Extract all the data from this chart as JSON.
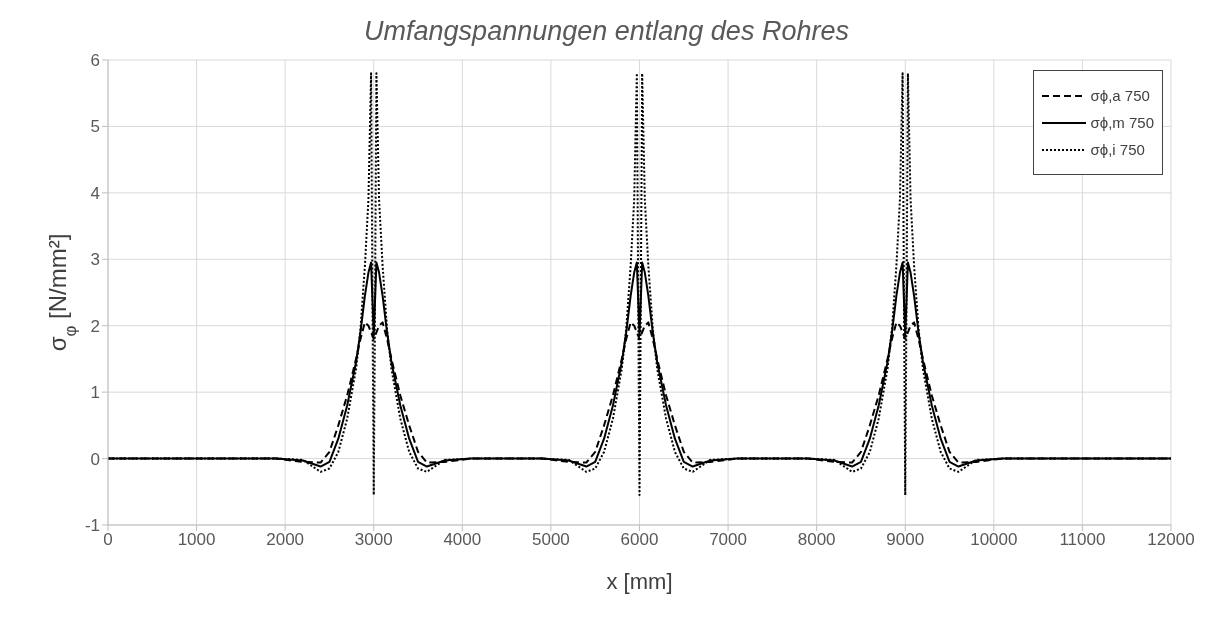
{
  "chart_data": {
    "type": "line",
    "title": "Umfangspannungen entlang des Rohres",
    "xlabel": "x [mm]",
    "ylabel": "σ$_{φ}$ [N/mm²]",
    "xlim": [
      0,
      12000
    ],
    "xticks": [
      0,
      1000,
      2000,
      3000,
      4000,
      5000,
      6000,
      7000,
      8000,
      9000,
      10000,
      11000,
      12000
    ],
    "ylim": [
      -1,
      6
    ],
    "yticks": [
      -1,
      0,
      1,
      2,
      3,
      4,
      5,
      6
    ],
    "grid": true,
    "legend": "top right",
    "marker": "none",
    "x": [
      0,
      1900,
      2200,
      2400,
      2500,
      2600,
      2700,
      2800,
      2850,
      2900,
      2940,
      2970,
      2985,
      3000,
      3015,
      3030,
      3060,
      3100,
      3150,
      3200,
      3300,
      3400,
      3500,
      3600,
      3800,
      4100,
      4900,
      5200,
      5400,
      5500,
      5600,
      5700,
      5800,
      5850,
      5900,
      5940,
      5970,
      5985,
      6000,
      6015,
      6030,
      6060,
      6100,
      6150,
      6200,
      6300,
      6400,
      6500,
      6600,
      6800,
      7100,
      7900,
      8200,
      8400,
      8500,
      8600,
      8700,
      8800,
      8850,
      8900,
      8940,
      8970,
      8985,
      9000,
      9015,
      9030,
      9060,
      9100,
      9150,
      9200,
      9300,
      9400,
      9500,
      9600,
      9800,
      10100,
      12000
    ],
    "series": [
      {
        "name": "σϕ,a 750",
        "color": "#000000",
        "line_style": "dashed",
        "values": [
          0,
          0,
          -0.05,
          -0.06,
          0.1,
          0.5,
          0.95,
          1.5,
          1.8,
          2.05,
          2.0,
          1.9,
          1.85,
          1.8,
          1.85,
          1.9,
          2.0,
          2.05,
          1.8,
          1.5,
          0.95,
          0.5,
          0.1,
          -0.06,
          -0.05,
          0,
          0,
          -0.05,
          -0.06,
          0.1,
          0.5,
          0.95,
          1.5,
          1.8,
          2.05,
          2.0,
          1.9,
          1.85,
          1.8,
          1.85,
          1.9,
          2.0,
          2.05,
          1.8,
          1.5,
          0.95,
          0.5,
          0.1,
          -0.06,
          -0.05,
          0,
          0,
          -0.05,
          -0.06,
          0.1,
          0.5,
          0.95,
          1.5,
          1.8,
          2.05,
          2.0,
          1.9,
          1.85,
          1.8,
          1.85,
          1.9,
          2.0,
          2.05,
          1.8,
          1.5,
          0.95,
          0.5,
          0.1,
          -0.06,
          -0.05,
          0,
          0
        ]
      },
      {
        "name": "σϕ,m 750",
        "color": "#000000",
        "line_style": "solid",
        "values": [
          0,
          0,
          -0.03,
          -0.12,
          -0.05,
          0.3,
          0.8,
          1.45,
          1.9,
          2.45,
          2.8,
          2.95,
          2.4,
          1.85,
          2.4,
          2.95,
          2.8,
          2.45,
          1.9,
          1.45,
          0.8,
          0.3,
          -0.05,
          -0.12,
          -0.03,
          0,
          0,
          -0.03,
          -0.12,
          -0.05,
          0.3,
          0.8,
          1.45,
          1.9,
          2.45,
          2.8,
          2.95,
          2.4,
          1.85,
          2.4,
          2.95,
          2.8,
          2.45,
          1.9,
          1.45,
          0.8,
          0.3,
          -0.05,
          -0.12,
          -0.03,
          0,
          0,
          -0.03,
          -0.12,
          -0.05,
          0.3,
          0.8,
          1.45,
          1.9,
          2.45,
          2.8,
          2.95,
          2.4,
          1.85,
          2.4,
          2.95,
          2.8,
          2.45,
          1.9,
          1.45,
          0.8,
          0.3,
          -0.05,
          -0.12,
          -0.03,
          0,
          0
        ]
      },
      {
        "name": "σϕ,i 750",
        "color": "#000000",
        "line_style": "dotted",
        "values": [
          0,
          0,
          -0.02,
          -0.2,
          -0.15,
          0.1,
          0.6,
          1.35,
          1.95,
          2.9,
          3.9,
          5.8,
          2.5,
          -0.55,
          2.5,
          5.8,
          3.9,
          2.9,
          1.95,
          1.35,
          0.6,
          0.1,
          -0.15,
          -0.2,
          -0.02,
          0,
          0,
          -0.02,
          -0.2,
          -0.15,
          0.1,
          0.6,
          1.35,
          1.95,
          2.9,
          3.9,
          5.8,
          2.5,
          -0.55,
          2.5,
          5.8,
          3.9,
          2.9,
          1.95,
          1.35,
          0.6,
          0.1,
          -0.15,
          -0.2,
          -0.02,
          0,
          0,
          -0.02,
          -0.2,
          -0.15,
          0.1,
          0.6,
          1.35,
          1.95,
          2.9,
          3.9,
          5.8,
          2.5,
          -0.55,
          2.5,
          5.8,
          3.9,
          2.9,
          1.95,
          1.35,
          0.6,
          0.1,
          -0.15,
          -0.2,
          -0.02,
          0,
          0
        ]
      }
    ]
  }
}
